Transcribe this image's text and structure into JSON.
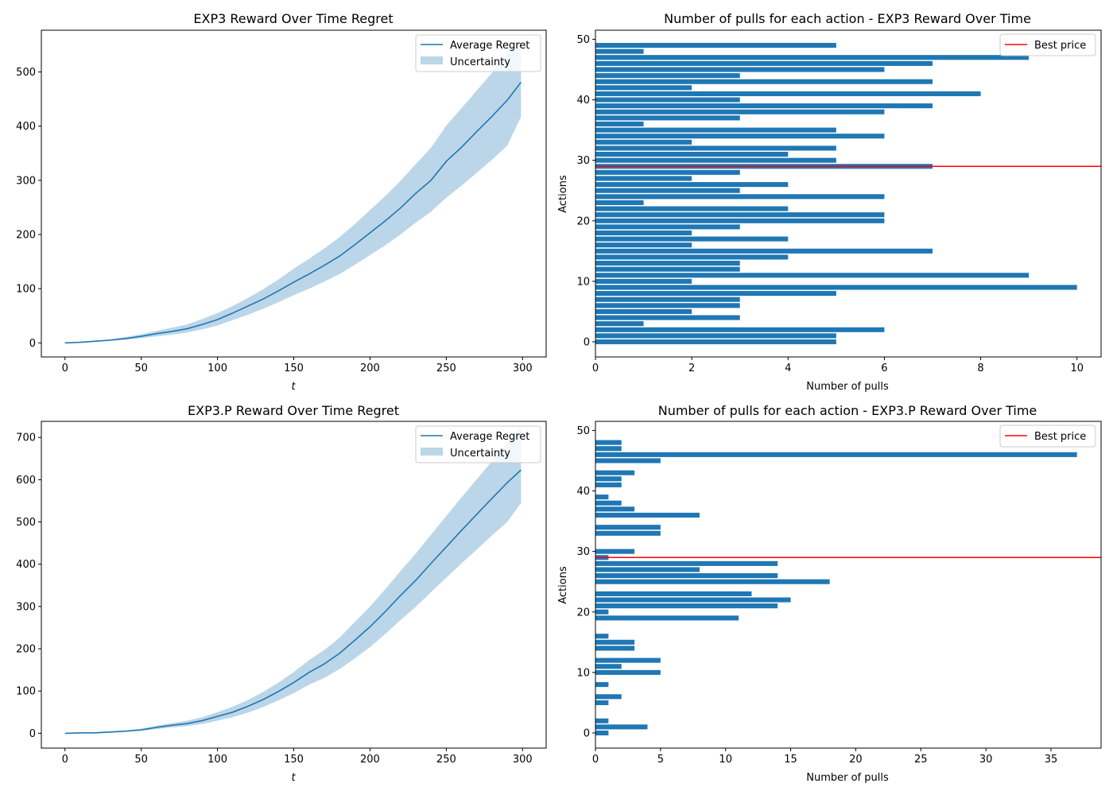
{
  "figure": {
    "colors": {
      "line": "#1f77b4",
      "band": "#1f77b4",
      "bar": "#1f77b4",
      "best": "#ff0000",
      "axis": "#000000"
    }
  },
  "chart_data": [
    {
      "type": "line",
      "title": "EXP3 Reward Over Time Regret",
      "xlabel": "t",
      "ylabel": "",
      "xlim": [
        -15.5,
        315.5
      ],
      "ylim": [
        -26,
        577
      ],
      "xticks": [
        0,
        50,
        100,
        150,
        200,
        250,
        300
      ],
      "yticks": [
        0,
        100,
        200,
        300,
        400,
        500
      ],
      "legend_position": "upper right",
      "legend": {
        "line_label": "Average Regret",
        "band_label": "Uncertainty"
      },
      "x": [
        0,
        10,
        20,
        30,
        40,
        50,
        60,
        70,
        80,
        90,
        100,
        110,
        120,
        130,
        140,
        150,
        160,
        170,
        180,
        190,
        200,
        210,
        220,
        230,
        240,
        250,
        260,
        270,
        280,
        290,
        299
      ],
      "mean": [
        0,
        1,
        3,
        5,
        8,
        12,
        17,
        21,
        26,
        34,
        43,
        55,
        68,
        81,
        96,
        112,
        127,
        143,
        160,
        181,
        203,
        225,
        249,
        276,
        300,
        335,
        361,
        390,
        418,
        448,
        481
      ],
      "lower": [
        0,
        1,
        2,
        4,
        6,
        9,
        12,
        15,
        19,
        25,
        32,
        42,
        52,
        63,
        75,
        88,
        100,
        113,
        127,
        144,
        162,
        180,
        200,
        222,
        242,
        268,
        290,
        314,
        338,
        364,
        417
      ],
      "upper": [
        0,
        2,
        4,
        7,
        11,
        16,
        22,
        28,
        34,
        44,
        55,
        68,
        83,
        99,
        117,
        137,
        155,
        174,
        195,
        219,
        245,
        271,
        299,
        330,
        360,
        401,
        433,
        466,
        498,
        533,
        560
      ]
    },
    {
      "type": "bar",
      "orientation": "horizontal",
      "title": "Number of pulls for each action - EXP3 Reward Over Time",
      "xlabel": "Number of pulls",
      "ylabel": "Actions",
      "xlim": [
        0,
        10.5
      ],
      "ylim": [
        -2.5,
        51.5
      ],
      "xticks": [
        0,
        2,
        4,
        6,
        8,
        10
      ],
      "yticks": [
        0,
        10,
        20,
        30,
        40,
        50
      ],
      "legend_position": "upper right",
      "best_price_label": "Best price",
      "best_price_action": 29,
      "categories": [
        0,
        1,
        2,
        3,
        4,
        5,
        6,
        7,
        8,
        9,
        10,
        11,
        12,
        13,
        14,
        15,
        16,
        17,
        18,
        19,
        20,
        21,
        22,
        23,
        24,
        25,
        26,
        27,
        28,
        29,
        30,
        31,
        32,
        33,
        34,
        35,
        36,
        37,
        38,
        39,
        40,
        41,
        42,
        43,
        44,
        45,
        46,
        47,
        48,
        49
      ],
      "values": [
        5,
        5,
        6,
        1,
        3,
        2,
        3,
        3,
        5,
        10,
        2,
        9,
        3,
        3,
        4,
        7,
        2,
        4,
        2,
        3,
        6,
        6,
        4,
        1,
        6,
        3,
        4,
        2,
        3,
        7,
        5,
        4,
        5,
        2,
        6,
        5,
        1,
        3,
        6,
        7,
        3,
        8,
        2,
        7,
        3,
        6,
        7,
        9,
        1,
        5
      ]
    },
    {
      "type": "line",
      "title": "EXP3.P Reward Over Time Regret",
      "xlabel": "t",
      "ylabel": "",
      "xlim": [
        -15.5,
        315.5
      ],
      "ylim": [
        -35,
        738
      ],
      "xticks": [
        0,
        50,
        100,
        150,
        200,
        250,
        300
      ],
      "yticks": [
        0,
        100,
        200,
        300,
        400,
        500,
        600,
        700
      ],
      "legend_position": "upper right",
      "legend": {
        "line_label": "Average Regret",
        "band_label": "Uncertainty"
      },
      "x": [
        0,
        10,
        20,
        30,
        40,
        50,
        60,
        70,
        80,
        90,
        100,
        110,
        120,
        130,
        140,
        150,
        160,
        170,
        180,
        190,
        200,
        210,
        220,
        230,
        240,
        250,
        260,
        270,
        280,
        290,
        299
      ],
      "mean": [
        0,
        1,
        1,
        3,
        5,
        8,
        14,
        19,
        23,
        30,
        40,
        50,
        64,
        80,
        99,
        120,
        144,
        164,
        189,
        220,
        252,
        288,
        326,
        362,
        402,
        441,
        480,
        518,
        556,
        593,
        623
      ],
      "lower": [
        0,
        0,
        0,
        2,
        4,
        6,
        10,
        14,
        17,
        22,
        30,
        38,
        49,
        62,
        78,
        95,
        115,
        131,
        152,
        177,
        204,
        235,
        268,
        299,
        334,
        368,
        402,
        435,
        468,
        500,
        545
      ],
      "upper": [
        0,
        2,
        3,
        5,
        7,
        11,
        18,
        24,
        30,
        38,
        50,
        63,
        79,
        98,
        120,
        145,
        173,
        197,
        226,
        263,
        300,
        341,
        384,
        425,
        470,
        514,
        558,
        601,
        644,
        686,
        722
      ]
    },
    {
      "type": "bar",
      "orientation": "horizontal",
      "title": "Number of pulls for each action - EXP3.P Reward Over Time",
      "xlabel": "Number of pulls",
      "ylabel": "Actions",
      "xlim": [
        0,
        38.85
      ],
      "ylim": [
        -2.5,
        51.5
      ],
      "xticks": [
        0,
        5,
        10,
        15,
        20,
        25,
        30,
        35
      ],
      "yticks": [
        0,
        10,
        20,
        30,
        40,
        50
      ],
      "legend_position": "upper right",
      "best_price_label": "Best price",
      "best_price_action": 29,
      "categories": [
        0,
        1,
        2,
        3,
        4,
        5,
        6,
        7,
        8,
        9,
        10,
        11,
        12,
        13,
        14,
        15,
        16,
        17,
        18,
        19,
        20,
        21,
        22,
        23,
        24,
        25,
        26,
        27,
        28,
        29,
        30,
        31,
        32,
        33,
        34,
        35,
        36,
        37,
        38,
        39,
        40,
        41,
        42,
        43,
        44,
        45,
        46,
        47,
        48,
        49
      ],
      "values": [
        1,
        4,
        1,
        0,
        0,
        1,
        2,
        0,
        1,
        0,
        5,
        2,
        5,
        0,
        3,
        3,
        1,
        0,
        0,
        11,
        1,
        14,
        15,
        12,
        0,
        18,
        14,
        8,
        14,
        1,
        3,
        0,
        0,
        5,
        5,
        0,
        8,
        3,
        2,
        1,
        0,
        2,
        2,
        3,
        0,
        5,
        37,
        2,
        2,
        0
      ]
    }
  ]
}
